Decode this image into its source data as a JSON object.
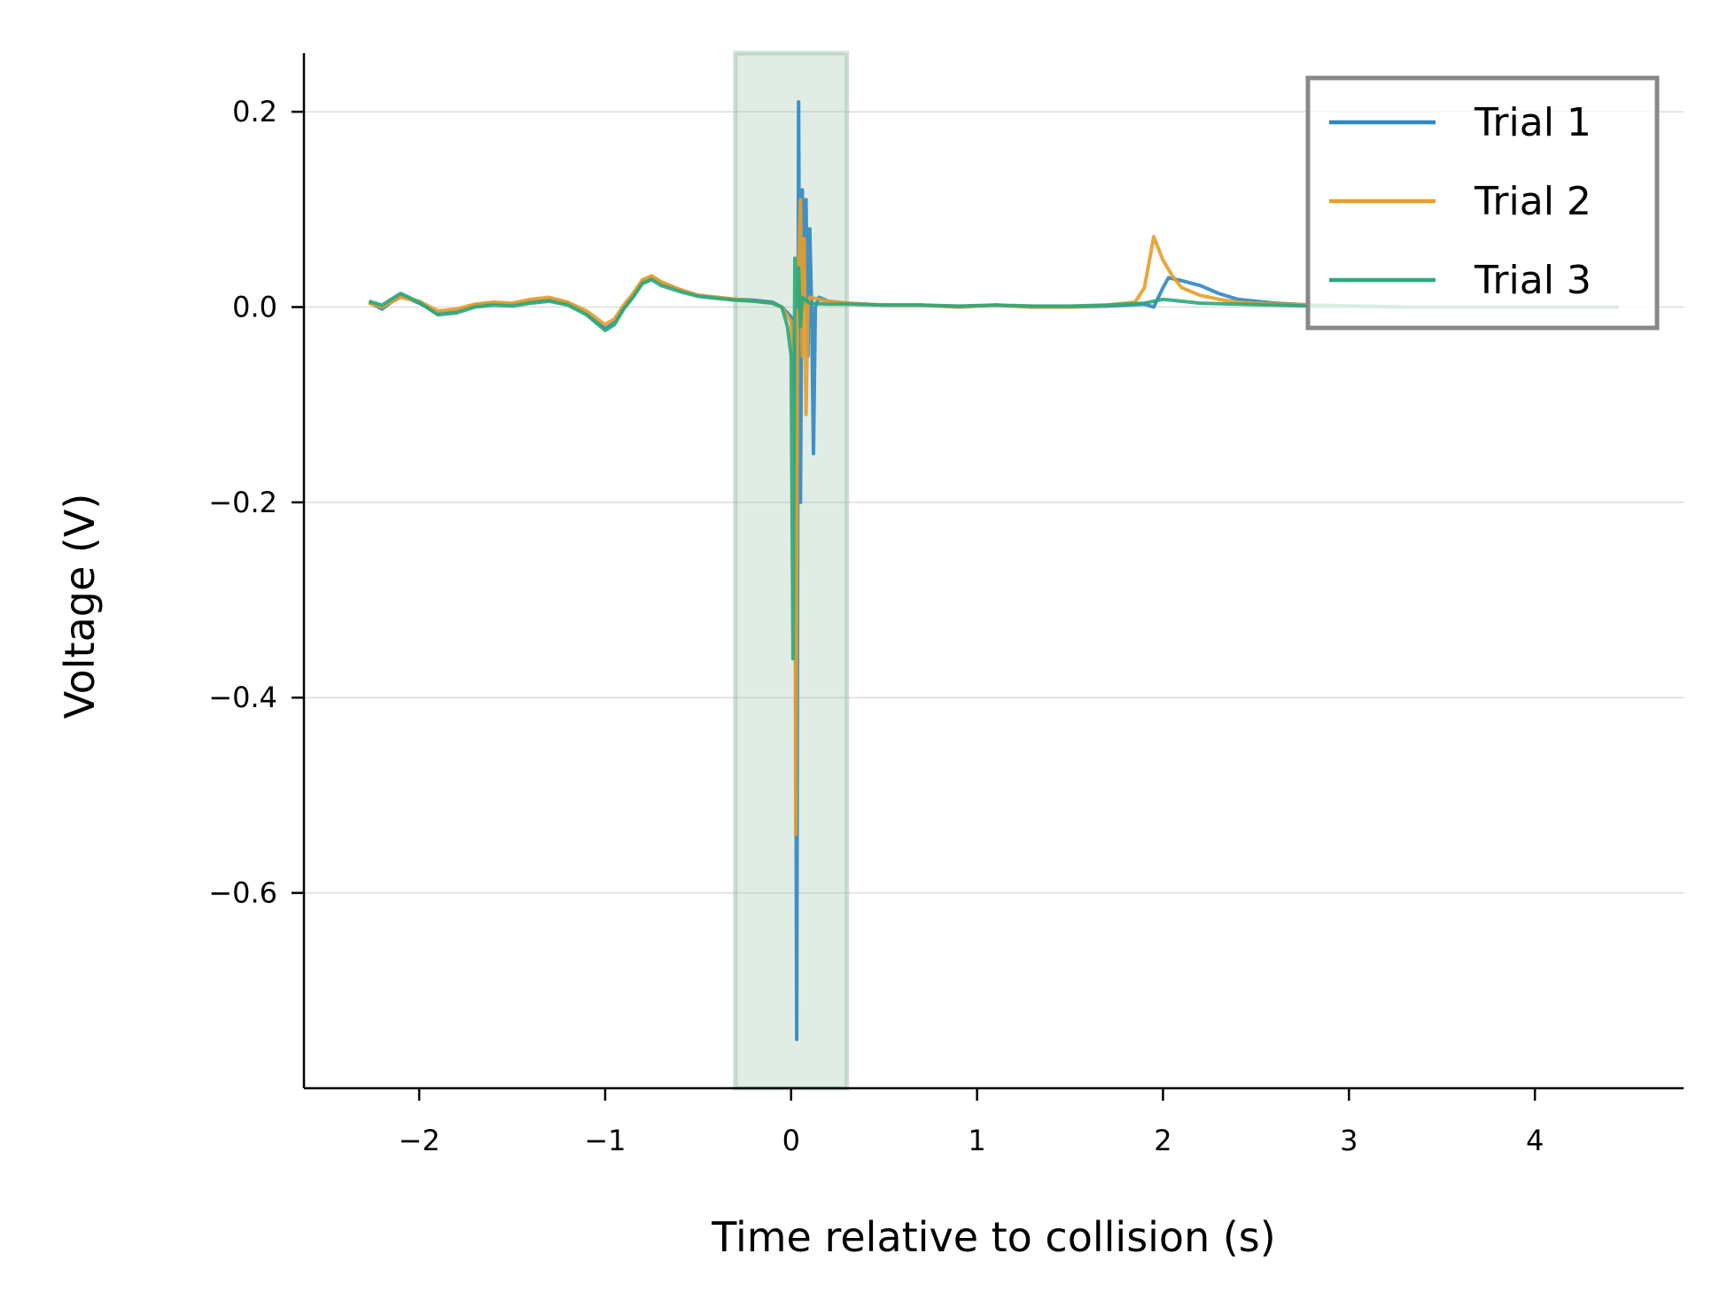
{
  "chart_data": {
    "type": "line",
    "title": "",
    "xlabel": "Time relative to collision (s)",
    "ylabel": "Voltage (V)",
    "xlim": [
      -2.62,
      4.8
    ],
    "ylim": [
      -0.8,
      0.26
    ],
    "xticks": [
      -2,
      -1,
      0,
      1,
      2,
      3,
      4
    ],
    "xtick_labels": [
      "−2",
      "−1",
      "0",
      "1",
      "2",
      "3",
      "4"
    ],
    "yticks": [
      0.2,
      0.0,
      -0.2,
      -0.4,
      -0.6
    ],
    "ytick_labels": [
      "0.2",
      "0.0",
      "−0.2",
      "−0.4",
      "−0.6"
    ],
    "grid": "horizontal",
    "legend_position": "top-right",
    "shaded_region": {
      "x_start": -0.3,
      "x_end": 0.3,
      "color": "#9dbfaa"
    },
    "series": [
      {
        "name": "Trial 1",
        "color": "#2e86c1",
        "points": [
          [
            -2.27,
            0.005
          ],
          [
            -2.2,
            -0.002
          ],
          [
            -2.1,
            0.012
          ],
          [
            -2.0,
            0.004
          ],
          [
            -1.9,
            -0.006
          ],
          [
            -1.8,
            -0.004
          ],
          [
            -1.7,
            0.002
          ],
          [
            -1.6,
            0.004
          ],
          [
            -1.5,
            0.003
          ],
          [
            -1.4,
            0.006
          ],
          [
            -1.3,
            0.008
          ],
          [
            -1.2,
            0.004
          ],
          [
            -1.1,
            -0.006
          ],
          [
            -1.0,
            -0.022
          ],
          [
            -0.95,
            -0.015
          ],
          [
            -0.9,
            0.0
          ],
          [
            -0.85,
            0.012
          ],
          [
            -0.8,
            0.026
          ],
          [
            -0.75,
            0.03
          ],
          [
            -0.7,
            0.025
          ],
          [
            -0.6,
            0.018
          ],
          [
            -0.5,
            0.012
          ],
          [
            -0.4,
            0.01
          ],
          [
            -0.3,
            0.008
          ],
          [
            -0.2,
            0.007
          ],
          [
            -0.1,
            0.005
          ],
          [
            -0.05,
            0.0
          ],
          [
            0.0,
            -0.01
          ],
          [
            0.02,
            -0.05
          ],
          [
            0.03,
            -0.75
          ],
          [
            0.04,
            0.21
          ],
          [
            0.05,
            -0.2
          ],
          [
            0.06,
            0.12
          ],
          [
            0.07,
            0.0
          ],
          [
            0.08,
            0.11
          ],
          [
            0.09,
            -0.05
          ],
          [
            0.1,
            0.08
          ],
          [
            0.11,
            0.0
          ],
          [
            0.12,
            -0.15
          ],
          [
            0.13,
            0.0
          ],
          [
            0.15,
            0.01
          ],
          [
            0.2,
            0.006
          ],
          [
            0.3,
            0.004
          ],
          [
            0.5,
            0.002
          ],
          [
            0.7,
            0.002
          ],
          [
            0.9,
            0.0
          ],
          [
            1.1,
            0.002
          ],
          [
            1.3,
            0.0
          ],
          [
            1.5,
            0.0
          ],
          [
            1.7,
            0.001
          ],
          [
            1.9,
            0.003
          ],
          [
            1.95,
            0.0
          ],
          [
            2.0,
            0.02
          ],
          [
            2.03,
            0.03
          ],
          [
            2.1,
            0.027
          ],
          [
            2.2,
            0.022
          ],
          [
            2.3,
            0.014
          ],
          [
            2.4,
            0.008
          ],
          [
            2.6,
            0.004
          ],
          [
            2.8,
            0.002
          ],
          [
            3.0,
            0.001
          ],
          [
            3.3,
            0.0
          ],
          [
            3.6,
            0.0
          ],
          [
            3.9,
            0.0
          ],
          [
            4.2,
            0.0
          ],
          [
            4.45,
            0.0
          ]
        ]
      },
      {
        "name": "Trial 2",
        "color": "#e69f2a",
        "points": [
          [
            -2.27,
            0.004
          ],
          [
            -2.2,
            0.0
          ],
          [
            -2.1,
            0.01
          ],
          [
            -2.0,
            0.006
          ],
          [
            -1.9,
            -0.004
          ],
          [
            -1.8,
            -0.002
          ],
          [
            -1.7,
            0.003
          ],
          [
            -1.6,
            0.005
          ],
          [
            -1.5,
            0.004
          ],
          [
            -1.4,
            0.008
          ],
          [
            -1.3,
            0.01
          ],
          [
            -1.2,
            0.005
          ],
          [
            -1.1,
            -0.004
          ],
          [
            -1.0,
            -0.018
          ],
          [
            -0.95,
            -0.012
          ],
          [
            -0.9,
            0.002
          ],
          [
            -0.85,
            0.014
          ],
          [
            -0.8,
            0.028
          ],
          [
            -0.75,
            0.032
          ],
          [
            -0.7,
            0.026
          ],
          [
            -0.6,
            0.018
          ],
          [
            -0.5,
            0.012
          ],
          [
            -0.4,
            0.01
          ],
          [
            -0.3,
            0.008
          ],
          [
            -0.2,
            0.006
          ],
          [
            -0.1,
            0.004
          ],
          [
            -0.05,
            0.0
          ],
          [
            0.0,
            -0.015
          ],
          [
            0.02,
            -0.1
          ],
          [
            0.025,
            -0.54
          ],
          [
            0.035,
            0.0
          ],
          [
            0.05,
            0.11
          ],
          [
            0.06,
            -0.05
          ],
          [
            0.07,
            0.07
          ],
          [
            0.08,
            -0.11
          ],
          [
            0.09,
            0.0
          ],
          [
            0.1,
            0.01
          ],
          [
            0.15,
            0.008
          ],
          [
            0.2,
            0.006
          ],
          [
            0.3,
            0.004
          ],
          [
            0.5,
            0.002
          ],
          [
            0.7,
            0.002
          ],
          [
            0.9,
            0.0
          ],
          [
            1.1,
            0.002
          ],
          [
            1.3,
            0.0
          ],
          [
            1.5,
            0.0
          ],
          [
            1.7,
            0.002
          ],
          [
            1.85,
            0.005
          ],
          [
            1.9,
            0.02
          ],
          [
            1.95,
            0.072
          ],
          [
            2.0,
            0.048
          ],
          [
            2.05,
            0.032
          ],
          [
            2.1,
            0.02
          ],
          [
            2.2,
            0.012
          ],
          [
            2.3,
            0.008
          ],
          [
            2.4,
            0.005
          ],
          [
            2.6,
            0.003
          ],
          [
            2.8,
            0.002
          ],
          [
            3.0,
            0.001
          ],
          [
            3.3,
            0.0
          ],
          [
            3.6,
            0.0
          ],
          [
            3.9,
            0.0
          ],
          [
            4.2,
            0.0
          ],
          [
            4.45,
            0.0
          ]
        ]
      },
      {
        "name": "Trial 3",
        "color": "#2aa87a",
        "points": [
          [
            -2.27,
            0.006
          ],
          [
            -2.2,
            0.002
          ],
          [
            -2.1,
            0.014
          ],
          [
            -2.0,
            0.005
          ],
          [
            -1.9,
            -0.008
          ],
          [
            -1.8,
            -0.006
          ],
          [
            -1.7,
            0.0
          ],
          [
            -1.6,
            0.002
          ],
          [
            -1.5,
            0.001
          ],
          [
            -1.4,
            0.004
          ],
          [
            -1.3,
            0.006
          ],
          [
            -1.2,
            0.002
          ],
          [
            -1.1,
            -0.008
          ],
          [
            -1.0,
            -0.024
          ],
          [
            -0.95,
            -0.018
          ],
          [
            -0.9,
            -0.002
          ],
          [
            -0.85,
            0.01
          ],
          [
            -0.8,
            0.024
          ],
          [
            -0.75,
            0.028
          ],
          [
            -0.7,
            0.022
          ],
          [
            -0.6,
            0.016
          ],
          [
            -0.5,
            0.011
          ],
          [
            -0.4,
            0.009
          ],
          [
            -0.3,
            0.007
          ],
          [
            -0.2,
            0.006
          ],
          [
            -0.1,
            0.004
          ],
          [
            -0.05,
            0.0
          ],
          [
            -0.02,
            -0.02
          ],
          [
            0.0,
            -0.05
          ],
          [
            0.01,
            -0.36
          ],
          [
            0.02,
            0.05
          ],
          [
            0.03,
            0.0
          ],
          [
            0.04,
            0.04
          ],
          [
            0.05,
            -0.02
          ],
          [
            0.06,
            0.01
          ],
          [
            0.1,
            0.004
          ],
          [
            0.2,
            0.003
          ],
          [
            0.3,
            0.003
          ],
          [
            0.5,
            0.002
          ],
          [
            0.7,
            0.002
          ],
          [
            0.9,
            0.001
          ],
          [
            1.1,
            0.002
          ],
          [
            1.3,
            0.001
          ],
          [
            1.5,
            0.001
          ],
          [
            1.7,
            0.002
          ],
          [
            1.9,
            0.004
          ],
          [
            2.0,
            0.008
          ],
          [
            2.1,
            0.006
          ],
          [
            2.2,
            0.004
          ],
          [
            2.4,
            0.003
          ],
          [
            2.6,
            0.002
          ],
          [
            2.8,
            0.001
          ],
          [
            3.0,
            0.001
          ],
          [
            3.3,
            0.0
          ],
          [
            3.6,
            0.0
          ],
          [
            3.9,
            0.0
          ],
          [
            4.2,
            0.0
          ],
          [
            4.45,
            0.0
          ]
        ]
      }
    ]
  }
}
